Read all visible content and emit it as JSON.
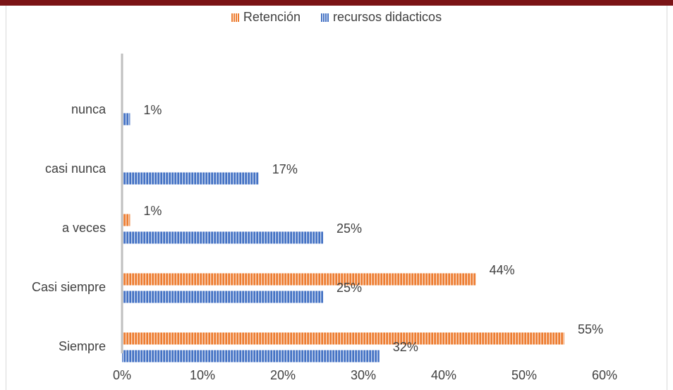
{
  "chart_data": {
    "type": "bar",
    "orientation": "horizontal",
    "categories": [
      "nunca",
      "casi nunca",
      "a veces",
      "Casi siempre",
      "Siempre"
    ],
    "series": [
      {
        "name": "Retención",
        "values": [
          null,
          null,
          1,
          44,
          55
        ],
        "labels": [
          "",
          "",
          "1%",
          "44%",
          "55%"
        ],
        "color": "#ed7d31"
      },
      {
        "name": "recursos didacticos",
        "values": [
          1,
          17,
          25,
          25,
          32
        ],
        "labels": [
          "1%",
          "17%",
          "25%",
          "25%",
          "32%"
        ],
        "color": "#4472c4"
      }
    ],
    "xlim": [
      0,
      60
    ],
    "xticks": [
      "0%",
      "10%",
      "20%",
      "30%",
      "40%",
      "50%",
      "60%"
    ],
    "legend_position": "top",
    "grid": false
  }
}
